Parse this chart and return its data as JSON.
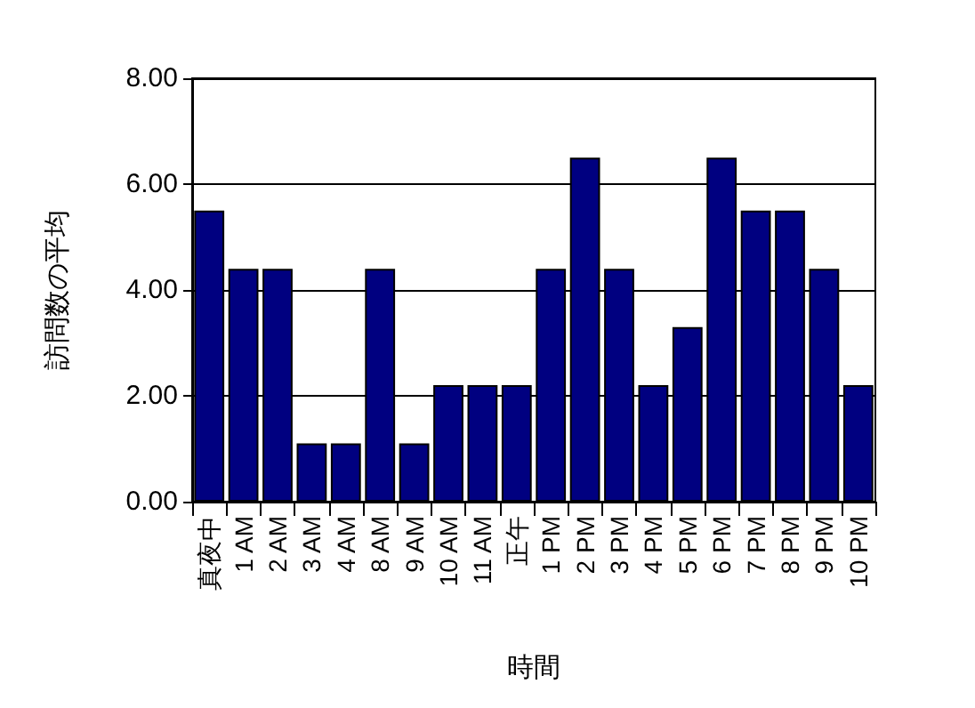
{
  "chart_data": {
    "type": "bar",
    "xlabel": "時間",
    "ylabel": "訪問数の平均",
    "categories": [
      "真夜中",
      "1 AM",
      "2 AM",
      "3 AM",
      "4 AM",
      "8 AM",
      "9 AM",
      "10 AM",
      "11 AM",
      "正午",
      "1 PM",
      "2 PM",
      "3 PM",
      "4 PM",
      "5 PM",
      "6 PM",
      "7 PM",
      "8 PM",
      "9 PM",
      "10 PM"
    ],
    "values": [
      5.5,
      4.4,
      4.4,
      1.1,
      1.1,
      4.4,
      1.1,
      2.2,
      2.2,
      2.2,
      4.4,
      6.5,
      4.4,
      2.2,
      3.3,
      6.5,
      5.5,
      5.5,
      4.4,
      2.2
    ],
    "color": "#000080",
    "ylim": [
      0,
      8
    ],
    "yticks": [
      {
        "value": 0,
        "label": "0.00"
      },
      {
        "value": 2,
        "label": "2.00"
      },
      {
        "value": 4,
        "label": "4.00"
      },
      {
        "value": 6,
        "label": "6.00"
      },
      {
        "value": 8,
        "label": "8.00"
      }
    ],
    "grid": "y"
  }
}
